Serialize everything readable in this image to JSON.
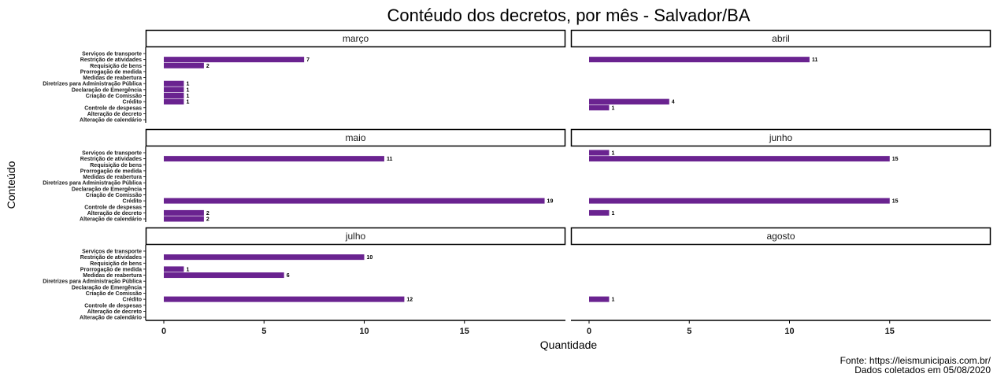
{
  "chart_data": {
    "type": "bar",
    "orientation": "horizontal",
    "title": "Contéudo dos decretos, por mês - Salvador/BA",
    "xlabel": "Quantidade",
    "ylabel": "Conteúdo",
    "xlim": [
      0,
      19
    ],
    "x_ticks": [
      0,
      5,
      10,
      15
    ],
    "bar_color": "#6a2390",
    "grid": false,
    "categories": [
      "Serviços de transporte",
      "Restrição de atividades",
      "Requisição de bens",
      "Prorrogação de medida",
      "Medidas de reabertura",
      "Diretrizes para Administração Pública",
      "Declaração de Emergência",
      "Criação de Comissão",
      "Crédito",
      "Controle de despesas",
      "Alteração de decreto",
      "Alteração de calendário"
    ],
    "panels": [
      {
        "name": "março",
        "values": [
          0,
          7,
          2,
          0,
          0,
          1,
          1,
          1,
          1,
          0,
          0,
          0
        ]
      },
      {
        "name": "abril",
        "values": [
          0,
          11,
          0,
          0,
          0,
          0,
          0,
          0,
          4,
          1,
          0,
          0
        ]
      },
      {
        "name": "maio",
        "values": [
          0,
          11,
          0,
          0,
          0,
          0,
          0,
          0,
          19,
          0,
          2,
          2
        ]
      },
      {
        "name": "junho",
        "values": [
          1,
          15,
          0,
          0,
          0,
          0,
          0,
          0,
          15,
          0,
          1,
          0
        ]
      },
      {
        "name": "julho",
        "values": [
          0,
          10,
          0,
          1,
          6,
          0,
          0,
          0,
          12,
          0,
          0,
          0
        ]
      },
      {
        "name": "agosto",
        "values": [
          0,
          0,
          0,
          0,
          0,
          0,
          0,
          0,
          1,
          0,
          0,
          0
        ]
      }
    ]
  },
  "source": {
    "line1": "Fonte: https://leismunicipais.com.br/",
    "line2": "Dados coletados em 05/08/2020"
  }
}
